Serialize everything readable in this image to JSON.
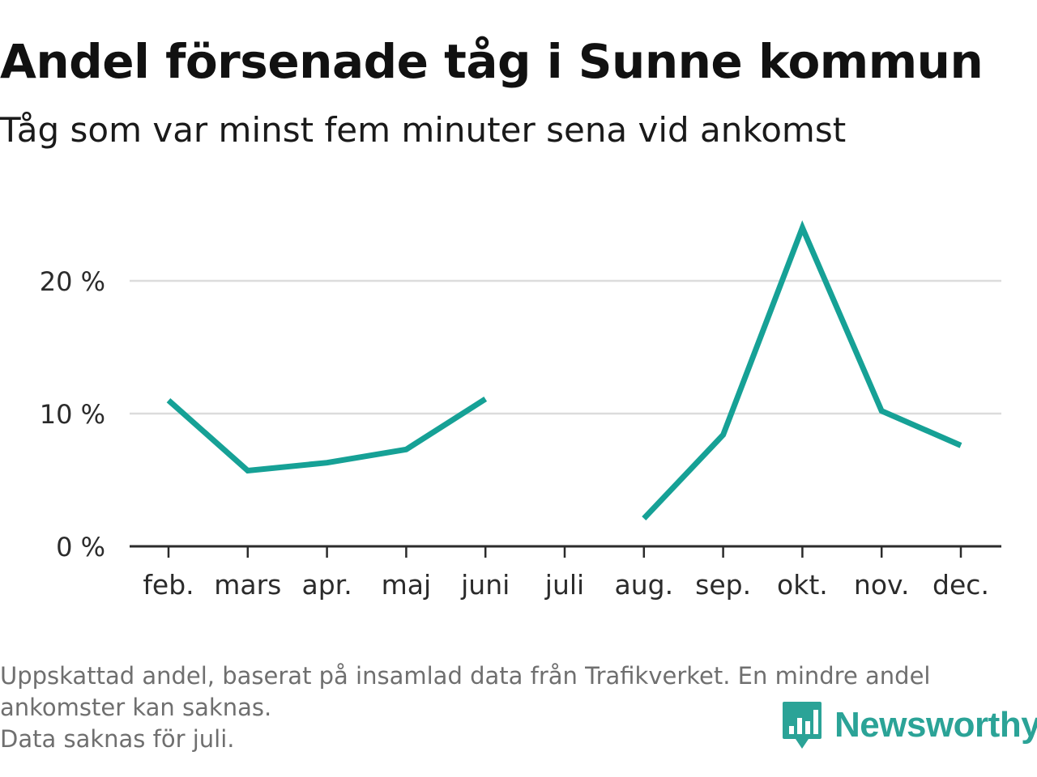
{
  "header": {
    "title": "Andel försenade tåg i Sunne kommun",
    "subtitle": "Tåg som var minst fem minuter sena vid ankomst"
  },
  "chart_data": {
    "type": "line",
    "title": "Andel försenade tåg i Sunne kommun",
    "subtitle": "Tåg som var minst fem minuter sena vid ankomst",
    "xlabel": "",
    "ylabel": "",
    "categories": [
      "feb.",
      "mars",
      "apr.",
      "maj",
      "juni",
      "juli",
      "aug.",
      "sep.",
      "okt.",
      "nov.",
      "dec."
    ],
    "series": [
      {
        "name": "Andel försenade tåg",
        "values": [
          11.0,
          5.7,
          6.3,
          7.3,
          11.1,
          null,
          2.1,
          8.4,
          24.0,
          10.2,
          7.6
        ]
      }
    ],
    "ylim": [
      0,
      25
    ],
    "yticks": [
      0,
      10,
      20
    ],
    "ytick_labels": [
      "0 %",
      "10 %",
      "20 %"
    ],
    "grid": true,
    "line_color": "#16a196"
  },
  "footer": {
    "note_line1": "Uppskattad andel, baserat på insamlad data från Trafikverket. En mindre andel",
    "note_line2": "ankomster kan saknas.",
    "note_line3": "Data saknas för juli.",
    "brand": "Newsworthy",
    "brand_color": "#2ba397"
  }
}
